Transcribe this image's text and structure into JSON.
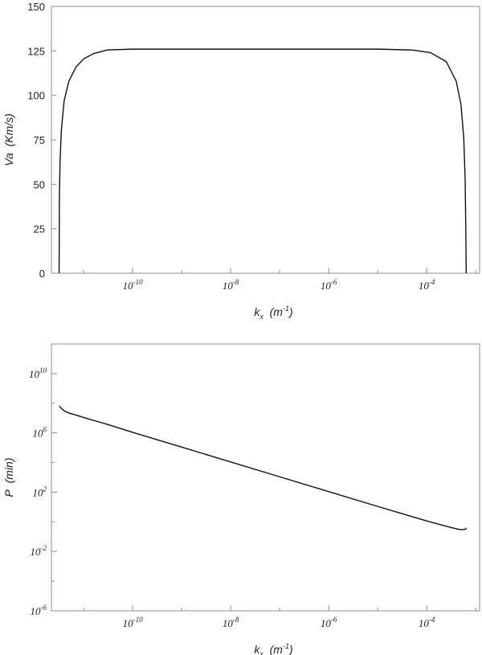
{
  "chart_data": [
    {
      "type": "line",
      "title": "",
      "xlabel": "k_x  (m^-1)",
      "ylabel": "Va  (Km/s)",
      "x_scale": "log",
      "y_scale": "linear",
      "xlim": [
        2.2e-12,
        0.0012
      ],
      "ylim": [
        0,
        150
      ],
      "x_tick_labels": [
        "10^-10",
        "10^-8",
        "10^-6",
        "10^-4"
      ],
      "x_tick_values": [
        1e-10,
        1e-08,
        1e-06,
        0.0001
      ],
      "y_ticks": [
        0,
        25,
        50,
        75,
        100,
        125,
        150
      ],
      "series": [
        {
          "x": [
            3.16e-12,
            3.2e-12,
            3.3e-12,
            3.5e-12,
            4e-12,
            5e-12,
            7e-12,
            1e-11,
            1.6e-11,
            3e-11,
            1e-10,
            1e-09,
            1e-08,
            1e-07,
            1e-06,
            1e-05,
            5e-05,
            0.00012,
            0.00025,
            0.0004,
            0.0005,
            0.00057,
            0.00061,
            0.00063,
            0.00064
          ],
          "y": [
            0,
            42,
            62,
            80,
            97,
            108,
            116,
            120.5,
            123.5,
            125.5,
            126,
            126,
            126,
            126,
            126,
            126,
            125.5,
            124,
            119,
            108,
            95,
            76,
            52,
            20,
            0
          ]
        }
      ]
    },
    {
      "type": "line",
      "title": "",
      "xlabel": "k_x  (m^-1)",
      "ylabel": "P  (min)",
      "x_scale": "log",
      "y_scale": "log",
      "xlim": [
        2.2e-12,
        0.0012
      ],
      "ylim": [
        1e-06,
        1000000000000.0
      ],
      "x_tick_labels": [
        "10^-10",
        "10^-8",
        "10^-6",
        "10^-4"
      ],
      "x_tick_values": [
        1e-10,
        1e-08,
        1e-06,
        0.0001
      ],
      "y_tick_labels": [
        "10^-6",
        "10^-2",
        "10^2",
        "10^6",
        "10^10"
      ],
      "y_tick_values": [
        1e-06,
        0.01,
        100.0,
        1000000.0,
        10000000000.0
      ],
      "series": [
        {
          "x": [
            3.2e-12,
            3.4e-12,
            4e-12,
            5e-12,
            7e-12,
            1e-11,
            3e-11,
            1e-10,
            1e-09,
            1e-08,
            1e-07,
            1e-06,
            1e-05,
            0.0001,
            0.0002,
            0.00035,
            0.00048,
            0.00058,
            0.00063,
            0.00064
          ],
          "y": [
            68000000.0,
            50000000.0,
            31000000.0,
            22000000.0,
            16000000.0,
            11000000.0,
            3800000.0,
            1100000.0,
            110000.0,
            11000.0,
            1100.0,
            110.0,
            11,
            1.15,
            0.62,
            0.38,
            0.3,
            0.3,
            0.33,
            0.4
          ]
        }
      ]
    }
  ]
}
